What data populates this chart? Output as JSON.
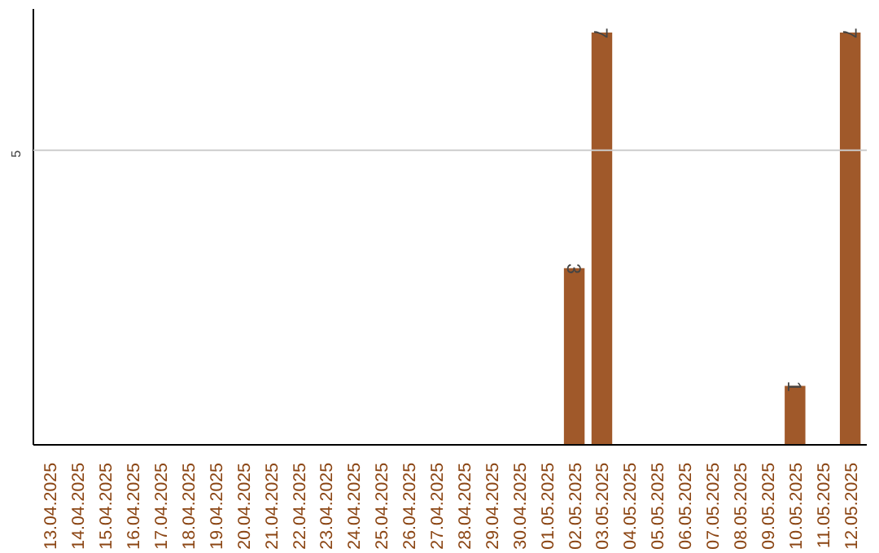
{
  "chart_data": {
    "type": "bar",
    "categories": [
      "13.04.2025",
      "14.04.2025",
      "15.04.2025",
      "16.04.2025",
      "17.04.2025",
      "18.04.2025",
      "19.04.2025",
      "20.04.2025",
      "21.04.2025",
      "22.04.2025",
      "23.04.2025",
      "24.04.2025",
      "25.04.2025",
      "26.04.2025",
      "27.04.2025",
      "28.04.2025",
      "29.04.2025",
      "30.04.2025",
      "01.05.2025",
      "02.05.2025",
      "03.05.2025",
      "04.05.2025",
      "05.05.2025",
      "06.05.2025",
      "07.05.2025",
      "08.05.2025",
      "09.05.2025",
      "10.05.2025",
      "11.05.2025",
      "12.05.2025"
    ],
    "values": [
      null,
      null,
      null,
      null,
      null,
      null,
      null,
      null,
      null,
      null,
      null,
      null,
      null,
      null,
      null,
      null,
      null,
      null,
      null,
      3,
      7,
      null,
      null,
      null,
      null,
      null,
      null,
      1,
      null,
      7
    ],
    "data_labels": true,
    "color": "#a0592a",
    "ylim": [
      0,
      7.4
    ],
    "ref_lines": [
      {
        "axis": "y",
        "value": 5,
        "label": "5",
        "color": "#cccccc"
      }
    ]
  }
}
